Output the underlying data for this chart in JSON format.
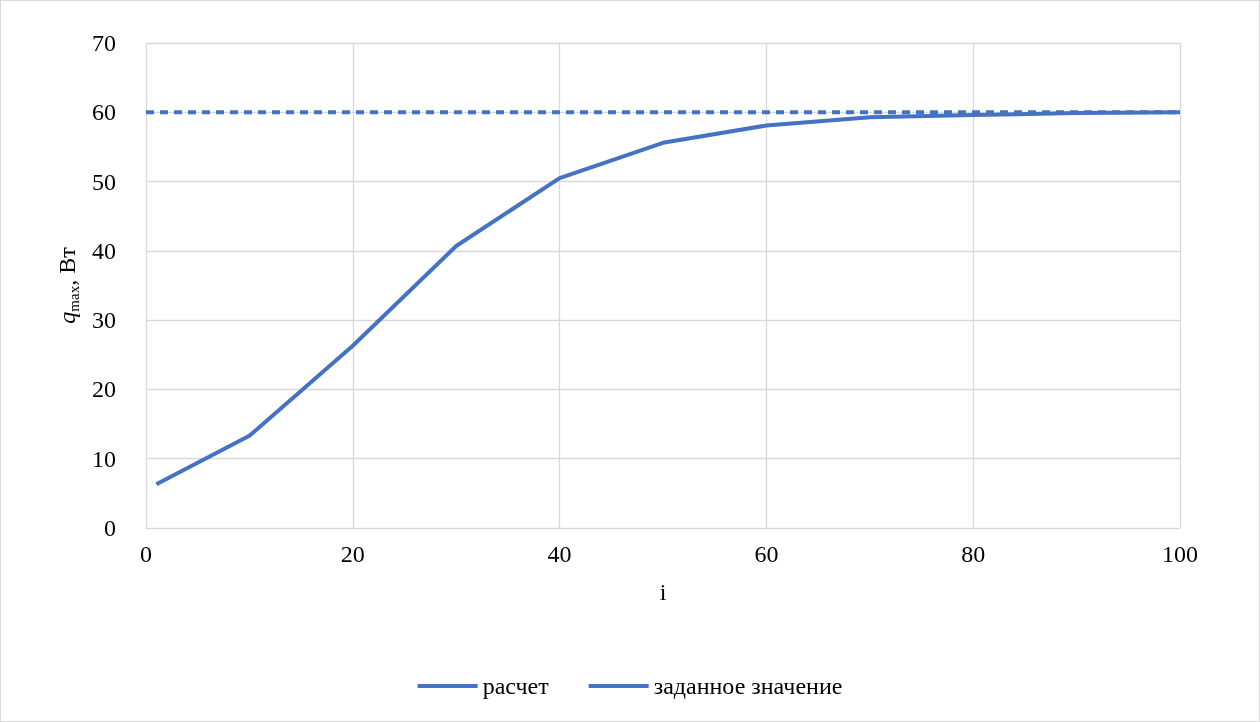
{
  "chart_data": {
    "type": "line",
    "xlabel": "i",
    "ylabel": "q$_{max}$, Вт",
    "xlim": [
      0,
      100
    ],
    "xticks": [
      0,
      20,
      40,
      60,
      80,
      100
    ],
    "ylim": [
      0,
      70
    ],
    "yticks": [
      0,
      10,
      20,
      30,
      40,
      50,
      60,
      70
    ],
    "grid": true,
    "legend": "bottom",
    "marker": "none",
    "series": [
      {
        "name": "расчет",
        "color": "#4472c4",
        "line_style": "solid",
        "x": [
          1,
          10,
          20,
          30,
          40,
          50,
          60,
          70,
          80,
          90,
          100
        ],
        "values": [
          6.3,
          13.3,
          26.3,
          40.7,
          50.5,
          55.6,
          58.1,
          59.3,
          59.6,
          59.9,
          60
        ]
      },
      {
        "name": "заданное значение",
        "color": "#4472c4",
        "line_style": "dashed",
        "x": [
          0,
          100
        ],
        "values": [
          60,
          60
        ]
      }
    ]
  }
}
